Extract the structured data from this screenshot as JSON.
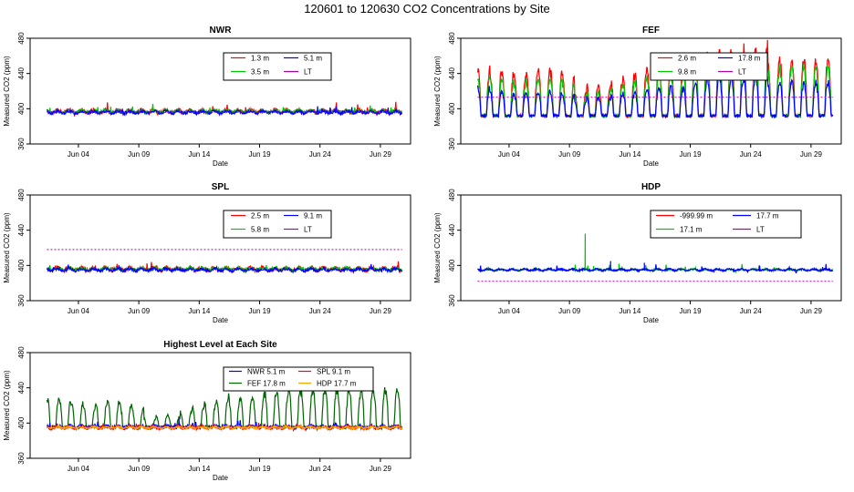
{
  "figure": {
    "title": "120601  to  120630 CO2 Concentrations by Site"
  },
  "colors": {
    "red": "#ff0000",
    "green": "#00c800",
    "blue": "#0000ff",
    "purple": "#b000b0",
    "black": "#000000",
    "darkgreen": "#006400",
    "orange": "#ffa500"
  },
  "chart_data": [
    {
      "id": "nwr",
      "type": "line",
      "title": "NWR",
      "xlabel": "Date",
      "ylabel": "Measured CO2 (ppm)",
      "ylim": [
        360,
        480
      ],
      "yticks": [
        360,
        400,
        440,
        480
      ],
      "xlim": [
        0,
        31.5
      ],
      "xticks": [
        {
          "label": "Jun 04",
          "day": 4
        },
        {
          "label": "Jun 09",
          "day": 9
        },
        {
          "label": "Jun 14",
          "day": 14
        },
        {
          "label": "Jun 19",
          "day": 19
        },
        {
          "label": "Jun 24",
          "day": 24
        },
        {
          "label": "Jun 29",
          "day": 29
        }
      ],
      "legend": {
        "placement": "top-right",
        "entries": [
          {
            "label": "1.3 m",
            "color": "#ff0000"
          },
          {
            "label": "5.1 m",
            "color": "#0000ff"
          },
          {
            "label": "3.5 m",
            "color": "#00c800"
          },
          {
            "label": "LT",
            "color": "#b000b0"
          }
        ]
      },
      "series": [
        {
          "name": "1.3 m",
          "color": "#ff0000",
          "style": "noisy",
          "base": 397,
          "amp": 4,
          "spike": 6,
          "seed": 11
        },
        {
          "name": "3.5 m",
          "color": "#00c800",
          "style": "noisy",
          "base": 397,
          "amp": 3,
          "spike": 4,
          "seed": 12
        },
        {
          "name": "5.1 m",
          "color": "#0000ff",
          "style": "noisy",
          "base": 396,
          "amp": 3,
          "spike": 4,
          "seed": 13
        },
        {
          "name": "LT",
          "color": "#b000b0",
          "style": "flat",
          "base": 396
        }
      ]
    },
    {
      "id": "fef",
      "type": "line",
      "title": "FEF",
      "xlabel": "Date",
      "ylabel": "Measured CO2 (ppm)",
      "ylim": [
        360,
        480
      ],
      "yticks": [
        360,
        400,
        440,
        480
      ],
      "xlim": [
        0,
        31.5
      ],
      "xticks": [
        {
          "label": "Jun 04",
          "day": 4
        },
        {
          "label": "Jun 09",
          "day": 9
        },
        {
          "label": "Jun 14",
          "day": 14
        },
        {
          "label": "Jun 19",
          "day": 19
        },
        {
          "label": "Jun 24",
          "day": 24
        },
        {
          "label": "Jun 29",
          "day": 29
        }
      ],
      "legend": {
        "placement": "top-right",
        "entries": [
          {
            "label": "2.6 m",
            "color": "#ff0000"
          },
          {
            "label": "17.8 m",
            "color": "#0000ff"
          },
          {
            "label": "9.8 m",
            "color": "#00c800"
          },
          {
            "label": "LT",
            "color": "#b000b0"
          }
        ]
      },
      "series": [
        {
          "name": "2.6 m",
          "color": "#ff0000",
          "style": "diurnal",
          "base": 392,
          "peaks": [
            450,
            448,
            445,
            440,
            445,
            448,
            446,
            440,
            420,
            430,
            428,
            435,
            440,
            445,
            450,
            455,
            450,
            460,
            465,
            470,
            475,
            468,
            472,
            478,
            460
          ],
          "seed": 21
        },
        {
          "name": "9.8 m",
          "color": "#00c800",
          "style": "diurnal",
          "base": 392,
          "peaks": [
            440,
            438,
            436,
            430,
            435,
            438,
            436,
            430,
            415,
            422,
            420,
            428,
            432,
            436,
            440,
            445,
            440,
            450,
            455,
            458,
            462,
            455,
            460,
            465,
            450
          ],
          "seed": 22
        },
        {
          "name": "17.8 m",
          "color": "#0000ff",
          "style": "diurnal",
          "base": 392,
          "peaks": [
            425,
            422,
            420,
            418,
            420,
            422,
            420,
            418,
            410,
            415,
            412,
            418,
            420,
            422,
            425,
            428,
            425,
            430,
            435,
            438,
            440,
            435,
            438,
            442,
            432
          ],
          "seed": 23
        },
        {
          "name": "LT",
          "color": "#b000b0",
          "style": "flat",
          "base": 413
        }
      ]
    },
    {
      "id": "spl",
      "type": "line",
      "title": "SPL",
      "xlabel": "Date",
      "ylabel": "Measured CO2 (ppm)",
      "ylim": [
        360,
        480
      ],
      "yticks": [
        360,
        400,
        440,
        480
      ],
      "xlim": [
        0,
        31.5
      ],
      "xticks": [
        {
          "label": "Jun 04",
          "day": 4
        },
        {
          "label": "Jun 09",
          "day": 9
        },
        {
          "label": "Jun 14",
          "day": 14
        },
        {
          "label": "Jun 19",
          "day": 19
        },
        {
          "label": "Jun 24",
          "day": 24
        },
        {
          "label": "Jun 29",
          "day": 29
        }
      ],
      "legend": {
        "placement": "top-right",
        "entries": [
          {
            "label": "2.5 m",
            "color": "#ff0000"
          },
          {
            "label": "9.1 m",
            "color": "#0000ff"
          },
          {
            "label": "5.8 m",
            "color": "#00c800"
          },
          {
            "label": "LT",
            "color": "#b000b0"
          }
        ]
      },
      "series": [
        {
          "name": "2.5 m",
          "color": "#ff0000",
          "style": "noisy",
          "base": 396,
          "amp": 4,
          "spike": 4,
          "seed": 31
        },
        {
          "name": "5.8 m",
          "color": "#00c800",
          "style": "noisy",
          "base": 396,
          "amp": 3,
          "spike": 3,
          "seed": 32
        },
        {
          "name": "9.1 m",
          "color": "#0000ff",
          "style": "noisy",
          "base": 395,
          "amp": 3,
          "spike": 3,
          "seed": 33
        },
        {
          "name": "LT",
          "color": "#b000b0",
          "style": "flat",
          "base": 418
        }
      ]
    },
    {
      "id": "hdp",
      "type": "line",
      "title": "HDP",
      "xlabel": "Date",
      "ylabel": "Measured CO2 (ppm)",
      "ylim": [
        360,
        480
      ],
      "yticks": [
        360,
        400,
        440,
        480
      ],
      "xlim": [
        0,
        31.5
      ],
      "xticks": [
        {
          "label": "Jun 04",
          "day": 4
        },
        {
          "label": "Jun 09",
          "day": 9
        },
        {
          "label": "Jun 14",
          "day": 14
        },
        {
          "label": "Jun 19",
          "day": 19
        },
        {
          "label": "Jun 24",
          "day": 24
        },
        {
          "label": "Jun 29",
          "day": 29
        }
      ],
      "legend": {
        "placement": "top-right",
        "entries": [
          {
            "label": "-999.99 m",
            "color": "#ff0000"
          },
          {
            "label": "17.7 m",
            "color": "#0000ff"
          },
          {
            "label": "17.1 m",
            "color": "#00c800"
          },
          {
            "label": "LT",
            "color": "#b000b0"
          }
        ]
      },
      "series": [
        {
          "name": "17.1 m",
          "color": "#00c800",
          "style": "noisy",
          "base": 395,
          "amp": 2,
          "spike": 3,
          "seed": 41,
          "events": [
            {
              "day": 10.3,
              "value": 436
            },
            {
              "day": 13.1,
              "value": 402
            }
          ]
        },
        {
          "name": "17.7 m",
          "color": "#0000ff",
          "style": "noisy",
          "base": 395,
          "amp": 2,
          "spike": 3,
          "seed": 42,
          "events": [
            {
              "day": 12.4,
              "value": 405
            },
            {
              "day": 15.2,
              "value": 403
            }
          ]
        },
        {
          "name": "LT",
          "color": "#b000b0",
          "style": "flat",
          "base": 382
        }
      ]
    },
    {
      "id": "highest",
      "type": "line",
      "title": "Highest Level at Each Site",
      "xlabel": "Date",
      "ylabel": "Measured CO2 (ppm)",
      "ylim": [
        360,
        480
      ],
      "yticks": [
        360,
        400,
        440,
        480
      ],
      "xlim": [
        0,
        31.5
      ],
      "xticks": [
        {
          "label": "Jun 04",
          "day": 4
        },
        {
          "label": "Jun 09",
          "day": 9
        },
        {
          "label": "Jun 14",
          "day": 14
        },
        {
          "label": "Jun 19",
          "day": 19
        },
        {
          "label": "Jun 24",
          "day": 24
        },
        {
          "label": "Jun 29",
          "day": 29
        }
      ],
      "legend": {
        "placement": "top-right",
        "entries": [
          {
            "label": "NWR   5.1 m",
            "color": "#0000ff"
          },
          {
            "label": "SPL   9.1 m",
            "color": "#ff0000"
          },
          {
            "label": "FEF   17.8 m",
            "color": "#006400"
          },
          {
            "label": "HDP   17.7 m",
            "color": "#ffa500"
          }
        ]
      },
      "series": [
        {
          "name": "FEF 17.8 m",
          "color": "#006400",
          "style": "diurnal",
          "base": 395,
          "peaks": [
            430,
            428,
            425,
            420,
            425,
            428,
            425,
            420,
            405,
            410,
            408,
            415,
            420,
            425,
            430,
            432,
            430,
            435,
            438,
            440,
            442,
            438,
            440,
            442,
            440
          ],
          "seed": 51
        },
        {
          "name": "NWR 5.1 m",
          "color": "#0000ff",
          "style": "noisy",
          "base": 396,
          "amp": 3,
          "spike": 4,
          "seed": 52
        },
        {
          "name": "SPL 9.1 m",
          "color": "#ff0000",
          "style": "noisy",
          "base": 395,
          "amp": 3,
          "spike": 3,
          "seed": 53
        },
        {
          "name": "HDP 17.7 m",
          "color": "#ffa500",
          "style": "noisy",
          "base": 395,
          "amp": 2,
          "spike": 2,
          "seed": 54
        }
      ]
    }
  ]
}
